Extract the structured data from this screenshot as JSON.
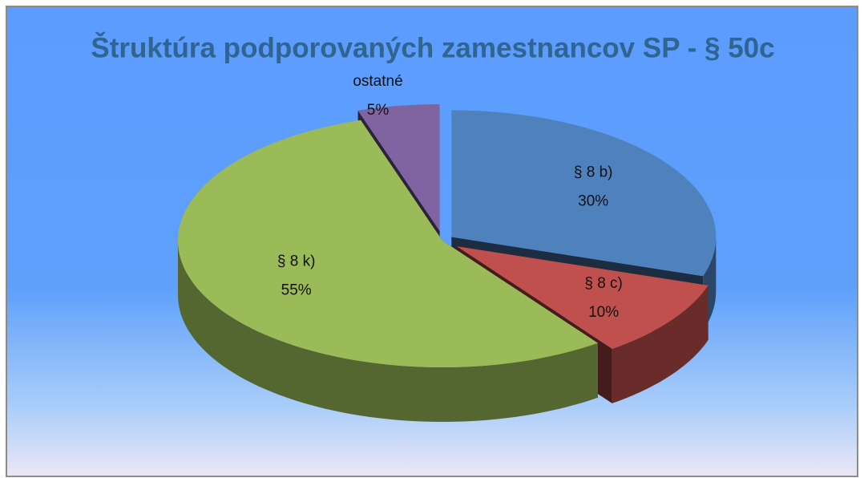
{
  "chart_data": {
    "type": "pie",
    "title": "Štruktúra podporovaných zamestnancov SP -  § 50c",
    "categories": [
      "§ 8 b)",
      "§ 8 c)",
      "§ 8 k)",
      "ostatné"
    ],
    "values": [
      30,
      10,
      55,
      5
    ],
    "value_labels": [
      "30%",
      "10%",
      "55%",
      "5%"
    ],
    "colors": [
      "#4f81bd",
      "#c0504d",
      "#9bbb59",
      "#8064a2"
    ]
  }
}
